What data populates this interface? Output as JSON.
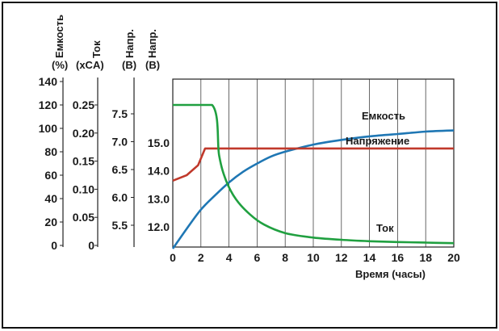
{
  "chart_data": {
    "type": "line",
    "xlabel": "Время (часы)",
    "xlim": [
      0,
      20
    ],
    "x_ticks": [
      "0",
      "2",
      "4",
      "6",
      "8",
      "10",
      "12",
      "14",
      "16",
      "18",
      "20"
    ],
    "grid": true,
    "axes": {
      "capacity": {
        "title": "Емкость",
        "unit": "(%)",
        "ticks": [
          "140",
          "120",
          "100",
          "80",
          "60",
          "40",
          "20",
          "0"
        ],
        "range": [
          0,
          140
        ]
      },
      "current": {
        "title": "Ток",
        "unit": "(xCA)",
        "ticks": [
          "0.25",
          "0.20",
          "0.15",
          "0.10",
          "0.05",
          "0"
        ],
        "range": [
          0,
          0.25
        ]
      },
      "voltage_a": {
        "title": "Напр.",
        "unit": "(В)",
        "ticks": [
          "7.5",
          "7.0",
          "6.5",
          "6.0",
          "5.5"
        ]
      },
      "voltage_b": {
        "title": "Напр.",
        "unit": "(В)",
        "ticks": [
          "15.0",
          "14.0",
          "13.0",
          "12.0"
        ]
      }
    },
    "series": [
      {
        "name": "Емкость",
        "axis": "capacity",
        "color": "#1f77b4",
        "x": [
          0,
          1,
          2,
          3,
          4,
          5,
          6,
          7,
          8,
          10,
          12,
          14,
          16,
          18,
          20
        ],
        "y": [
          0,
          17,
          33,
          45,
          56,
          65,
          72,
          78,
          82,
          88,
          92,
          95,
          97,
          99,
          100
        ]
      },
      {
        "name": "Напряжение",
        "axis": "voltage_b",
        "color": "#c0392b",
        "x": [
          0,
          1,
          1.8,
          2.3,
          20
        ],
        "y": [
          13.65,
          13.85,
          14.2,
          14.8,
          14.8
        ]
      },
      {
        "name": "Ток",
        "axis": "current",
        "color": "#20a040",
        "x": [
          0,
          2.8,
          3.3,
          3.8,
          4.5,
          5.5,
          6.5,
          8,
          10,
          12,
          14,
          16,
          18,
          20
        ],
        "y": [
          0.25,
          0.25,
          0.16,
          0.115,
          0.082,
          0.055,
          0.037,
          0.022,
          0.014,
          0.01,
          0.0075,
          0.006,
          0.005,
          0.004
        ]
      }
    ]
  }
}
